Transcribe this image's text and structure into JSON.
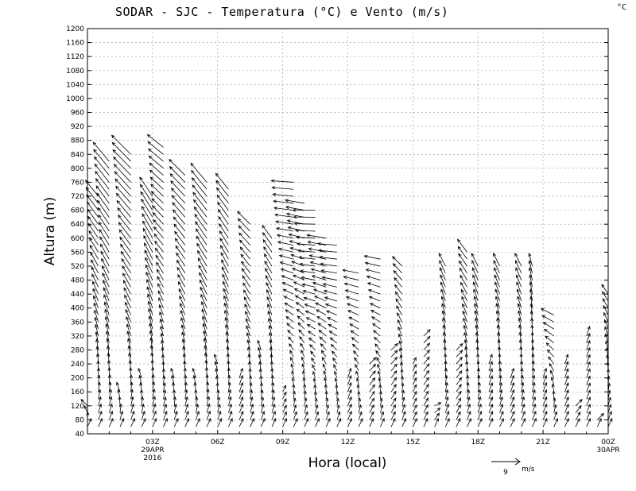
{
  "chart_data": {
    "type": "vector-field",
    "title": "SODAR - SJC - Temperatura (°C) e Vento (m/s)",
    "unit_label": "°C",
    "xlabel": "Hora (local)",
    "ylabel": "Altura (m)",
    "ylim": [
      40,
      1200
    ],
    "xlim_hours": [
      0,
      24
    ],
    "y_ticks": [
      "40",
      "80",
      "120",
      "160",
      "200",
      "240",
      "280",
      "320",
      "360",
      "400",
      "440",
      "480",
      "520",
      "560",
      "600",
      "640",
      "680",
      "720",
      "760",
      "800",
      "840",
      "880",
      "920",
      "960",
      "1000",
      "1040",
      "1080",
      "1120",
      "1160",
      "1200"
    ],
    "x_ticks": [
      {
        "hour": 3,
        "label": "03Z",
        "sub1": "29APR",
        "sub2": "2016"
      },
      {
        "hour": 6,
        "label": "06Z",
        "sub1": "",
        "sub2": ""
      },
      {
        "hour": 9,
        "label": "09Z",
        "sub1": "",
        "sub2": ""
      },
      {
        "hour": 12,
        "label": "12Z",
        "sub1": "",
        "sub2": ""
      },
      {
        "hour": 15,
        "label": "15Z",
        "sub1": "",
        "sub2": ""
      },
      {
        "hour": 18,
        "label": "18Z",
        "sub1": "",
        "sub2": ""
      },
      {
        "hour": 21,
        "label": "21Z",
        "sub1": "",
        "sub2": ""
      },
      {
        "hour": 24,
        "label": "00Z",
        "sub1": "30APR",
        "sub2": ""
      }
    ],
    "reference_vector": {
      "value": "9",
      "unit": "m/s"
    },
    "grid": true,
    "profiles": [
      {
        "hour": 0.0,
        "top": 120,
        "top_u": -2,
        "top_v": 2
      },
      {
        "hour": 0.5,
        "top": 720,
        "top_u": -4,
        "top_v": 5
      },
      {
        "hour": 1.0,
        "top": 820,
        "top_u": -5,
        "top_v": 6
      },
      {
        "hour": 1.5,
        "top": 160,
        "top_u": -1,
        "top_v": 3
      },
      {
        "hour": 2.0,
        "top": 840,
        "top_u": -6,
        "top_v": 6
      },
      {
        "hour": 2.5,
        "top": 200,
        "top_u": -1,
        "top_v": 3
      },
      {
        "hour": 3.0,
        "top": 720,
        "top_u": -4,
        "top_v": 6
      },
      {
        "hour": 3.5,
        "top": 860,
        "top_u": -5,
        "top_v": 4
      },
      {
        "hour": 4.0,
        "top": 200,
        "top_u": -1,
        "top_v": 3
      },
      {
        "hour": 4.5,
        "top": 780,
        "top_u": -5,
        "top_v": 5
      },
      {
        "hour": 5.0,
        "top": 200,
        "top_u": -1,
        "top_v": 3
      },
      {
        "hour": 5.5,
        "top": 760,
        "top_u": -5,
        "top_v": 6
      },
      {
        "hour": 6.0,
        "top": 240,
        "top_u": -1,
        "top_v": 3
      },
      {
        "hour": 6.5,
        "top": 740,
        "top_u": -4,
        "top_v": 5
      },
      {
        "hour": 7.0,
        "top": 200,
        "top_u": 1,
        "top_v": 3
      },
      {
        "hour": 7.5,
        "top": 640,
        "top_u": -4,
        "top_v": 4
      },
      {
        "hour": 8.0,
        "top": 280,
        "top_u": -1,
        "top_v": 3
      },
      {
        "hour": 8.5,
        "top": 600,
        "top_u": -3,
        "top_v": 4
      },
      {
        "hour": 9.0,
        "top": 160,
        "top_u": 1,
        "top_v": 2
      },
      {
        "hour": 9.5,
        "top": 760,
        "top_u": -7,
        "top_v": 0.5
      },
      {
        "hour": 10.0,
        "top": 700,
        "top_u": -6,
        "top_v": 1
      },
      {
        "hour": 10.5,
        "top": 680,
        "top_u": -7,
        "top_v": 0
      },
      {
        "hour": 11.0,
        "top": 600,
        "top_u": -6,
        "top_v": 1
      },
      {
        "hour": 11.5,
        "top": 580,
        "top_u": -6,
        "top_v": 0.5
      },
      {
        "hour": 12.0,
        "top": 200,
        "top_u": 1,
        "top_v": 3
      },
      {
        "hour": 12.5,
        "top": 500,
        "top_u": -5,
        "top_v": 1
      },
      {
        "hour": 13.0,
        "top": 240,
        "top_u": 2,
        "top_v": 2
      },
      {
        "hour": 13.5,
        "top": 540,
        "top_u": -5,
        "top_v": 1
      },
      {
        "hour": 14.0,
        "top": 280,
        "top_u": 2,
        "top_v": 2
      },
      {
        "hour": 14.5,
        "top": 520,
        "top_u": -3,
        "top_v": 3
      },
      {
        "hour": 15.0,
        "top": 240,
        "top_u": 1,
        "top_v": 2
      },
      {
        "hour": 15.5,
        "top": 320,
        "top_u": 2,
        "top_v": 2
      },
      {
        "hour": 16.0,
        "top": 120,
        "top_u": 2,
        "top_v": 1
      },
      {
        "hour": 16.5,
        "top": 520,
        "top_u": -2,
        "top_v": 4
      },
      {
        "hour": 17.0,
        "top": 280,
        "top_u": 2,
        "top_v": 2
      },
      {
        "hour": 17.5,
        "top": 560,
        "top_u": -3,
        "top_v": 4
      },
      {
        "hour": 18.0,
        "top": 520,
        "top_u": -2,
        "top_v": 4
      },
      {
        "hour": 18.5,
        "top": 240,
        "top_u": 1,
        "top_v": 3
      },
      {
        "hour": 19.0,
        "top": 520,
        "top_u": -2,
        "top_v": 4
      },
      {
        "hour": 19.5,
        "top": 200,
        "top_u": 1,
        "top_v": 3
      },
      {
        "hour": 20.0,
        "top": 520,
        "top_u": -2,
        "top_v": 4
      },
      {
        "hour": 20.5,
        "top": 520,
        "top_u": -1,
        "top_v": 4
      },
      {
        "hour": 21.0,
        "top": 200,
        "top_u": 1,
        "top_v": 3
      },
      {
        "hour": 21.5,
        "top": 380,
        "top_u": -4,
        "top_v": 2
      },
      {
        "hour": 22.0,
        "top": 240,
        "top_u": 1,
        "top_v": 3
      },
      {
        "hour": 22.5,
        "top": 120,
        "top_u": 2,
        "top_v": 2
      },
      {
        "hour": 23.0,
        "top": 320,
        "top_u": 1,
        "top_v": 3
      },
      {
        "hour": 23.5,
        "top": 80,
        "top_u": 2,
        "top_v": 2
      },
      {
        "hour": 24.0,
        "top": 440,
        "top_u": -2,
        "top_v": 3
      }
    ]
  }
}
